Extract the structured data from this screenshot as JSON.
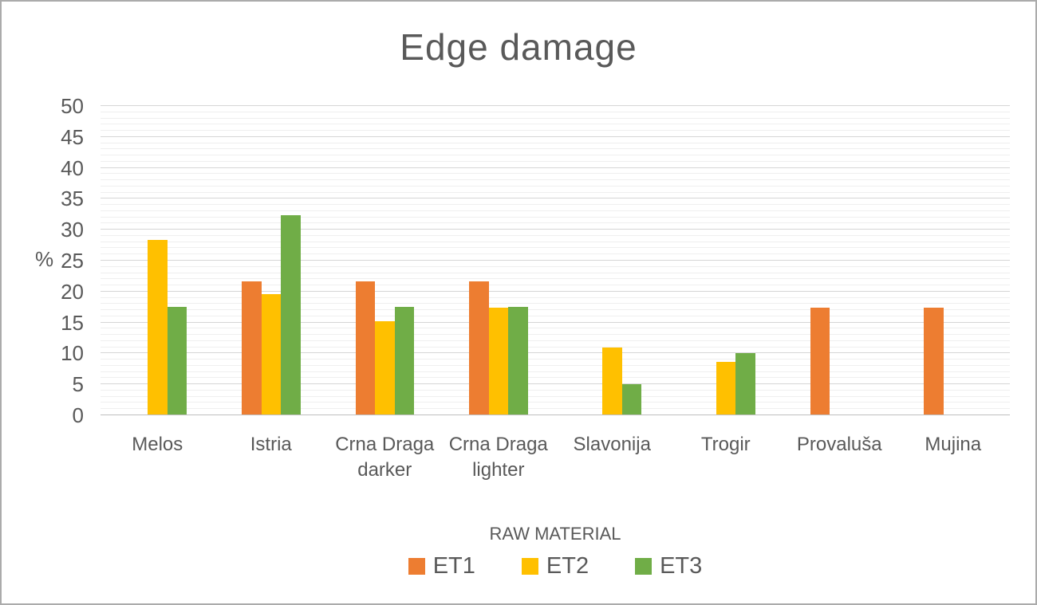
{
  "chart_data": {
    "type": "bar",
    "title": "Edge damage",
    "xlabel": "RAW MATERIAL",
    "ylabel": "%",
    "ylim": [
      0,
      50
    ],
    "y_tick_step": 5,
    "y_minor_gridline_step": 1,
    "grid": "horizontal, major and minor, no vertical gridlines",
    "legend_position": "bottom",
    "categories": [
      "Melos",
      "Istria",
      "Crna Draga darker",
      "Crna Draga lighter",
      "Slavonija",
      "Trogir",
      "Provaluša",
      "Mujina"
    ],
    "series": [
      {
        "name": "ET1",
        "color": "#ED7D31",
        "values": [
          0,
          21.7,
          21.7,
          21.7,
          0,
          0,
          17.4,
          17.4
        ]
      },
      {
        "name": "ET2",
        "color": "#FFC000",
        "values": [
          28.3,
          19.6,
          15.2,
          17.4,
          10.9,
          8.7,
          0,
          0
        ]
      },
      {
        "name": "ET3",
        "color": "#70AD47",
        "values": [
          17.5,
          32.4,
          17.5,
          17.5,
          5,
          10,
          0,
          0
        ]
      }
    ]
  },
  "style": {
    "text_color": "#595959",
    "grid_major": "#D6D6D6",
    "grid_minor": "#EFEFEF",
    "axis_line": "#BFBFBF",
    "frame_border": "#ABABAB",
    "bg": "#FFFFFF"
  }
}
